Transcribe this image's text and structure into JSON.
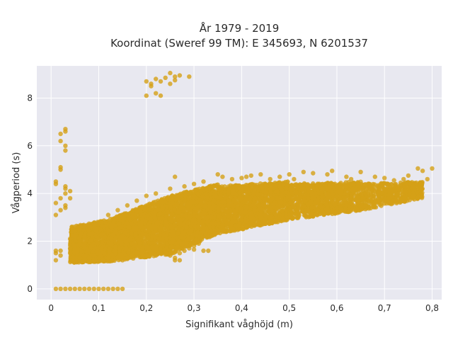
{
  "chart_data": {
    "type": "scatter",
    "title_lines": [
      "År 1979 - 2019",
      "Koordinat (Sweref 99 TM): E 345693, N 6201537"
    ],
    "xlabel": "Signifikant våghöjd (m)",
    "ylabel": "Vågperiod (s)",
    "xlim": [
      -0.03,
      0.82
    ],
    "ylim": [
      -0.45,
      9.35
    ],
    "x_ticks": [
      0,
      0.1,
      0.2,
      0.3,
      0.4,
      0.5,
      0.6,
      0.7,
      0.8
    ],
    "x_tick_labels": [
      "0",
      "0,1",
      "0,2",
      "0,3",
      "0,4",
      "0,5",
      "0,6",
      "0,7",
      "0,8"
    ],
    "y_ticks": [
      0,
      2,
      4,
      6,
      8
    ],
    "y_tick_labels": [
      "0",
      "2",
      "4",
      "6",
      "8"
    ],
    "grid": true,
    "colors": {
      "marker": "#D4A017",
      "plot_bg": "#E8E8F0",
      "grid": "#ffffff"
    },
    "series": [
      {
        "points": [
          [
            0.01,
            0
          ],
          [
            0.02,
            0
          ],
          [
            0.03,
            0
          ],
          [
            0.04,
            0
          ],
          [
            0.05,
            0
          ],
          [
            0.06,
            0
          ],
          [
            0.07,
            0
          ],
          [
            0.08,
            0
          ],
          [
            0.09,
            0
          ],
          [
            0.1,
            0
          ],
          [
            0.11,
            0
          ],
          [
            0.12,
            0
          ],
          [
            0.13,
            0
          ],
          [
            0.14,
            0
          ],
          [
            0.15,
            0
          ],
          [
            0.01,
            1.6
          ],
          [
            0.01,
            1.5
          ],
          [
            0.01,
            1.2
          ],
          [
            0.02,
            1.4
          ],
          [
            0.02,
            1.6
          ],
          [
            0.01,
            3.1
          ],
          [
            0.01,
            3.6
          ],
          [
            0.02,
            3.3
          ],
          [
            0.01,
            4.4
          ],
          [
            0.01,
            4.5
          ],
          [
            0.02,
            3.8
          ],
          [
            0.02,
            5.1
          ],
          [
            0.03,
            5.8
          ],
          [
            0.03,
            6.0
          ],
          [
            0.02,
            6.2
          ],
          [
            0.02,
            6.5
          ],
          [
            0.03,
            6.6
          ],
          [
            0.03,
            6.7
          ],
          [
            0.02,
            5.0
          ],
          [
            0.03,
            3.4
          ],
          [
            0.03,
            3.5
          ],
          [
            0.03,
            4.0
          ],
          [
            0.03,
            4.2
          ],
          [
            0.03,
            4.3
          ],
          [
            0.04,
            3.8
          ],
          [
            0.04,
            4.1
          ],
          [
            0.2,
            8.7
          ],
          [
            0.2,
            8.1
          ],
          [
            0.21,
            8.5
          ],
          [
            0.21,
            8.6
          ],
          [
            0.22,
            8.2
          ],
          [
            0.22,
            8.8
          ],
          [
            0.23,
            8.1
          ],
          [
            0.23,
            8.7
          ],
          [
            0.24,
            8.85
          ],
          [
            0.25,
            8.6
          ],
          [
            0.25,
            9.05
          ],
          [
            0.26,
            8.75
          ],
          [
            0.26,
            8.9
          ],
          [
            0.27,
            8.95
          ],
          [
            0.29,
            8.9
          ],
          [
            0.12,
            1.2
          ],
          [
            0.12,
            1.3
          ],
          [
            0.13,
            1.2
          ],
          [
            0.14,
            1.3
          ],
          [
            0.15,
            1.2
          ],
          [
            0.16,
            1.3
          ],
          [
            0.17,
            1.4
          ],
          [
            0.18,
            1.5
          ],
          [
            0.19,
            1.5
          ],
          [
            0.2,
            1.4
          ],
          [
            0.21,
            1.5
          ],
          [
            0.22,
            1.4
          ],
          [
            0.23,
            1.5
          ],
          [
            0.24,
            1.5
          ],
          [
            0.25,
            1.4
          ],
          [
            0.26,
            1.3
          ],
          [
            0.27,
            1.5
          ],
          [
            0.28,
            1.6
          ],
          [
            0.29,
            1.7
          ],
          [
            0.3,
            1.8
          ],
          [
            0.31,
            1.9
          ],
          [
            0.26,
            1.2
          ],
          [
            0.27,
            1.2
          ],
          [
            0.32,
            1.6
          ],
          [
            0.33,
            1.6
          ],
          [
            0.3,
            1.65
          ],
          [
            0.35,
            4.8
          ],
          [
            0.36,
            4.7
          ],
          [
            0.38,
            4.6
          ],
          [
            0.4,
            4.65
          ],
          [
            0.41,
            4.7
          ],
          [
            0.42,
            4.75
          ],
          [
            0.44,
            4.8
          ],
          [
            0.46,
            4.6
          ],
          [
            0.48,
            4.7
          ],
          [
            0.5,
            4.8
          ],
          [
            0.51,
            4.6
          ],
          [
            0.53,
            4.9
          ],
          [
            0.55,
            4.85
          ],
          [
            0.58,
            4.8
          ],
          [
            0.59,
            4.95
          ],
          [
            0.62,
            4.7
          ],
          [
            0.63,
            4.6
          ],
          [
            0.65,
            4.9
          ],
          [
            0.68,
            4.7
          ],
          [
            0.7,
            4.65
          ],
          [
            0.72,
            4.55
          ],
          [
            0.74,
            4.6
          ],
          [
            0.75,
            4.75
          ],
          [
            0.77,
            5.05
          ],
          [
            0.78,
            4.95
          ],
          [
            0.79,
            4.6
          ],
          [
            0.8,
            5.05
          ],
          [
            0.76,
            4.3
          ],
          [
            0.73,
            4.2
          ],
          [
            0.71,
            4.1
          ],
          [
            0.69,
            4.3
          ],
          [
            0.66,
            4.0
          ],
          [
            0.64,
            4.2
          ],
          [
            0.61,
            4.1
          ],
          [
            0.6,
            3.9
          ],
          [
            0.57,
            4.2
          ],
          [
            0.56,
            3.7
          ],
          [
            0.54,
            3.8
          ],
          [
            0.36,
            2.7
          ],
          [
            0.38,
            2.8
          ],
          [
            0.4,
            2.9
          ],
          [
            0.42,
            2.8
          ],
          [
            0.44,
            3.0
          ],
          [
            0.46,
            3.0
          ],
          [
            0.48,
            3.1
          ],
          [
            0.5,
            3.0
          ],
          [
            0.52,
            3.2
          ],
          [
            0.54,
            3.3
          ],
          [
            0.56,
            3.3
          ],
          [
            0.58,
            3.4
          ],
          [
            0.6,
            3.4
          ],
          [
            0.62,
            3.5
          ],
          [
            0.64,
            3.5
          ],
          [
            0.66,
            3.6
          ],
          [
            0.68,
            3.6
          ],
          [
            0.7,
            3.7
          ],
          [
            0.72,
            3.7
          ],
          [
            0.74,
            3.8
          ],
          [
            0.76,
            3.9
          ],
          [
            0.34,
            2.6
          ],
          [
            0.32,
            2.5
          ],
          [
            0.2,
            3.9
          ],
          [
            0.22,
            4.0
          ],
          [
            0.25,
            4.2
          ],
          [
            0.26,
            4.7
          ],
          [
            0.28,
            4.3
          ],
          [
            0.3,
            4.4
          ],
          [
            0.32,
            4.5
          ],
          [
            0.18,
            3.7
          ],
          [
            0.16,
            3.5
          ],
          [
            0.14,
            3.3
          ],
          [
            0.12,
            3.1
          ],
          [
            0.1,
            2.8
          ],
          [
            0.08,
            2.6
          ],
          [
            0.06,
            2.5
          ],
          [
            0.05,
            2.4
          ],
          [
            0.05,
            1.2
          ],
          [
            0.06,
            1.3
          ],
          [
            0.07,
            1.2
          ],
          [
            0.08,
            1.3
          ],
          [
            0.09,
            1.2
          ],
          [
            0.1,
            1.3
          ],
          [
            0.11,
            1.2
          ],
          [
            0.04,
            1.5
          ],
          [
            0.05,
            1.8
          ],
          [
            0.06,
            2.0
          ],
          [
            0.07,
            2.2
          ],
          [
            0.08,
            2.3
          ],
          [
            0.04,
            2.1
          ],
          [
            0.04,
            1.7
          ]
        ],
        "bands": [
          {
            "x_from": 0.04,
            "x_to": 0.12,
            "y_low_from": 1.1,
            "y_low_to": 1.15,
            "y_high_from": 2.6,
            "y_high_to": 2.9,
            "count": 900
          },
          {
            "x_from": 0.12,
            "x_to": 0.25,
            "y_low_from": 1.15,
            "y_low_to": 1.45,
            "y_high_from": 2.9,
            "y_high_to": 3.9,
            "count": 1600
          },
          {
            "x_from": 0.25,
            "x_to": 0.35,
            "y_low_from": 1.45,
            "y_low_to": 2.3,
            "y_high_from": 3.9,
            "y_high_to": 4.4,
            "count": 1300
          },
          {
            "x_from": 0.35,
            "x_to": 0.5,
            "y_low_from": 2.3,
            "y_low_to": 2.9,
            "y_high_from": 4.3,
            "y_high_to": 4.5,
            "count": 1300
          },
          {
            "x_from": 0.5,
            "x_to": 0.65,
            "y_low_from": 2.9,
            "y_low_to": 3.3,
            "y_high_from": 4.4,
            "y_high_to": 4.5,
            "count": 900
          },
          {
            "x_from": 0.65,
            "x_to": 0.78,
            "y_low_from": 3.3,
            "y_low_to": 3.8,
            "y_high_from": 4.4,
            "y_high_to": 4.5,
            "count": 450
          }
        ]
      }
    ]
  }
}
